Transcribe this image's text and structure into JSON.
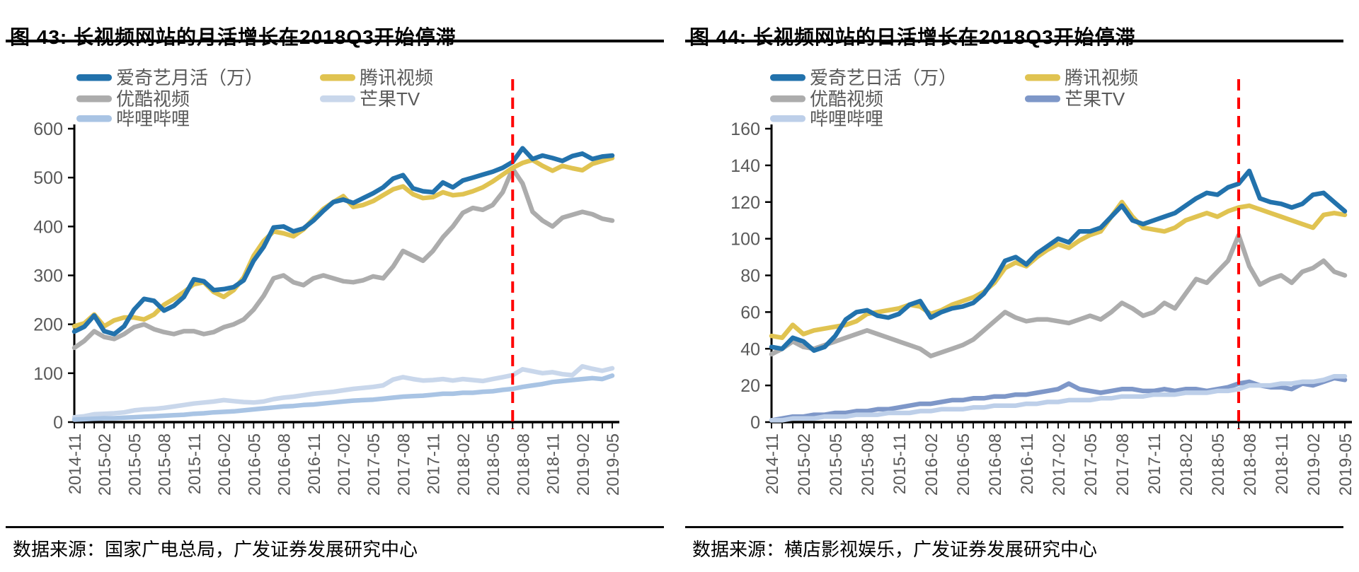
{
  "chart_data": [
    {
      "type": "line",
      "title": "图 43: 长视频网站的月活增长在2018Q3开始停滞",
      "source": "数据来源：国家广电总局，广发证券发展研究中心",
      "ylim": [
        0,
        600
      ],
      "ytick_step": 100,
      "x_label_every": 3,
      "grid": false,
      "legend_position": "top-left",
      "legend_columns": [
        [
          0,
          2,
          4
        ],
        [
          1,
          3
        ]
      ],
      "annotation_line": {
        "x": "2018-07",
        "color": "#FF0000",
        "style": "dashed"
      },
      "x": [
        "2014-11",
        "2014-12",
        "2015-01",
        "2015-02",
        "2015-03",
        "2015-04",
        "2015-05",
        "2015-06",
        "2015-07",
        "2015-08",
        "2015-09",
        "2015-10",
        "2015-11",
        "2015-12",
        "2016-01",
        "2016-02",
        "2016-03",
        "2016-04",
        "2016-05",
        "2016-06",
        "2016-07",
        "2016-08",
        "2016-09",
        "2016-10",
        "2016-11",
        "2016-12",
        "2017-01",
        "2017-02",
        "2017-03",
        "2017-04",
        "2017-05",
        "2017-06",
        "2017-07",
        "2017-08",
        "2017-09",
        "2017-10",
        "2017-11",
        "2017-12",
        "2018-01",
        "2018-02",
        "2018-03",
        "2018-04",
        "2018-05",
        "2018-06",
        "2018-07",
        "2018-08",
        "2018-09",
        "2018-10",
        "2018-11",
        "2018-12",
        "2019-01",
        "2019-02",
        "2019-03",
        "2019-04",
        "2019-05"
      ],
      "series": [
        {
          "name": "爱奇艺月活（万）",
          "color": "#2272AC",
          "values": [
            185,
            195,
            218,
            186,
            180,
            196,
            230,
            252,
            248,
            228,
            238,
            256,
            292,
            288,
            270,
            272,
            276,
            290,
            330,
            358,
            398,
            400,
            390,
            396,
            412,
            432,
            450,
            455,
            448,
            458,
            468,
            480,
            498,
            505,
            478,
            472,
            470,
            490,
            480,
            494,
            500,
            506,
            512,
            520,
            532,
            560,
            538,
            545,
            540,
            534,
            544,
            549,
            538,
            543,
            545
          ]
        },
        {
          "name": "腾讯视频",
          "color": "#E0C351",
          "values": [
            196,
            202,
            220,
            196,
            208,
            214,
            214,
            210,
            220,
            240,
            252,
            266,
            282,
            286,
            266,
            256,
            270,
            296,
            340,
            370,
            390,
            386,
            380,
            394,
            416,
            436,
            450,
            462,
            440,
            444,
            452,
            464,
            476,
            482,
            466,
            458,
            460,
            470,
            464,
            466,
            472,
            480,
            492,
            506,
            520,
            530,
            536,
            524,
            514,
            524,
            519,
            515,
            528,
            534,
            540
          ]
        },
        {
          "name": "优酷视频",
          "color": "#ACACAC",
          "values": [
            152,
            166,
            186,
            174,
            170,
            180,
            194,
            200,
            190,
            184,
            180,
            186,
            186,
            180,
            184,
            194,
            200,
            210,
            230,
            258,
            294,
            300,
            286,
            280,
            294,
            300,
            294,
            288,
            286,
            290,
            298,
            294,
            318,
            350,
            340,
            330,
            350,
            378,
            400,
            428,
            438,
            434,
            444,
            470,
            518,
            488,
            430,
            412,
            400,
            418,
            424,
            430,
            425,
            416,
            412
          ]
        },
        {
          "name": "芒果TV",
          "color": "#C9D7EB",
          "values": [
            10,
            12,
            16,
            17,
            18,
            20,
            24,
            26,
            27,
            29,
            32,
            35,
            38,
            40,
            42,
            45,
            43,
            41,
            40,
            42,
            47,
            50,
            52,
            55,
            58,
            60,
            62,
            65,
            68,
            70,
            72,
            75,
            87,
            92,
            88,
            85,
            86,
            88,
            85,
            88,
            86,
            84,
            88,
            92,
            96,
            108,
            104,
            100,
            102,
            98,
            96,
            114,
            109,
            105,
            110
          ]
        },
        {
          "name": "哔哩哔哩",
          "color": "#A9C4E4",
          "values": [
            5,
            6,
            7,
            8,
            8,
            9,
            10,
            11,
            12,
            13,
            14,
            15,
            17,
            18,
            20,
            21,
            22,
            24,
            26,
            28,
            30,
            32,
            33,
            35,
            36,
            38,
            40,
            42,
            44,
            45,
            46,
            48,
            50,
            52,
            53,
            54,
            56,
            58,
            58,
            60,
            60,
            62,
            63,
            66,
            68,
            72,
            75,
            78,
            82,
            84,
            86,
            88,
            90,
            88,
            95
          ]
        }
      ]
    },
    {
      "type": "line",
      "title": "图 44: 长视频网站的日活增长在2018Q3开始停滞",
      "source": "数据来源：横店影视娱乐，广发证券发展研究中心",
      "ylim": [
        0,
        160
      ],
      "ytick_step": 20,
      "x_label_every": 3,
      "grid": false,
      "legend_position": "top-left",
      "legend_columns": [
        [
          0,
          2,
          4
        ],
        [
          1,
          3
        ]
      ],
      "annotation_line": {
        "x": "2018-07",
        "color": "#FF0000",
        "style": "dashed"
      },
      "x": [
        "2014-11",
        "2014-12",
        "2015-01",
        "2015-02",
        "2015-03",
        "2015-04",
        "2015-05",
        "2015-06",
        "2015-07",
        "2015-08",
        "2015-09",
        "2015-10",
        "2015-11",
        "2015-12",
        "2016-01",
        "2016-02",
        "2016-03",
        "2016-04",
        "2016-05",
        "2016-06",
        "2016-07",
        "2016-08",
        "2016-09",
        "2016-10",
        "2016-11",
        "2016-12",
        "2017-01",
        "2017-02",
        "2017-03",
        "2017-04",
        "2017-05",
        "2017-06",
        "2017-07",
        "2017-08",
        "2017-09",
        "2017-10",
        "2017-11",
        "2017-12",
        "2018-01",
        "2018-02",
        "2018-03",
        "2018-04",
        "2018-05",
        "2018-06",
        "2018-07",
        "2018-08",
        "2018-09",
        "2018-10",
        "2018-11",
        "2018-12",
        "2019-01",
        "2019-02",
        "2019-03",
        "2019-04",
        "2019-05"
      ],
      "series": [
        {
          "name": "爱奇艺日活（万）",
          "color": "#2272AC",
          "values": [
            41,
            40,
            46,
            44,
            39,
            41,
            47,
            56,
            60,
            61,
            58,
            57,
            59,
            64,
            66,
            57,
            60,
            62,
            63,
            65,
            70,
            78,
            88,
            90,
            86,
            92,
            96,
            100,
            98,
            104,
            104,
            106,
            112,
            118,
            110,
            108,
            110,
            112,
            114,
            118,
            122,
            125,
            124,
            128,
            130,
            137,
            122,
            120,
            119,
            117,
            119,
            124,
            125,
            120,
            115
          ]
        },
        {
          "name": "腾讯视频",
          "color": "#E0C351",
          "values": [
            47,
            46,
            53,
            48,
            50,
            51,
            52,
            53,
            55,
            59,
            60,
            61,
            62,
            64,
            63,
            59,
            61,
            64,
            66,
            68,
            71,
            76,
            84,
            87,
            85,
            90,
            94,
            97,
            95,
            99,
            102,
            104,
            112,
            120,
            112,
            106,
            105,
            104,
            106,
            110,
            112,
            114,
            112,
            115,
            117,
            118,
            116,
            114,
            112,
            110,
            108,
            106,
            113,
            114,
            113
          ]
        },
        {
          "name": "优酷视频",
          "color": "#ACACAC",
          "values": [
            37,
            40,
            44,
            41,
            40,
            42,
            44,
            46,
            48,
            50,
            48,
            46,
            44,
            42,
            40,
            36,
            38,
            40,
            42,
            45,
            50,
            55,
            60,
            57,
            55,
            56,
            56,
            55,
            54,
            56,
            58,
            56,
            60,
            65,
            62,
            58,
            60,
            65,
            62,
            70,
            78,
            76,
            82,
            88,
            102,
            85,
            75,
            78,
            80,
            76,
            82,
            84,
            88,
            82,
            80
          ]
        },
        {
          "name": "芒果TV",
          "color": "#7E97C8",
          "values": [
            1,
            2,
            3,
            3,
            4,
            4,
            5,
            5,
            6,
            6,
            7,
            7,
            8,
            9,
            10,
            10,
            11,
            12,
            12,
            13,
            13,
            14,
            14,
            15,
            15,
            16,
            17,
            18,
            21,
            18,
            17,
            16,
            17,
            18,
            18,
            17,
            17,
            18,
            17,
            18,
            18,
            17,
            18,
            19,
            21,
            22,
            20,
            19,
            19,
            18,
            21,
            20,
            22,
            24,
            23
          ]
        },
        {
          "name": "哔哩哔哩",
          "color": "#BDCFE9",
          "values": [
            1,
            1,
            2,
            2,
            2,
            3,
            3,
            3,
            4,
            4,
            4,
            5,
            5,
            5,
            6,
            6,
            7,
            7,
            7,
            8,
            8,
            9,
            9,
            9,
            10,
            10,
            11,
            11,
            12,
            12,
            12,
            13,
            13,
            14,
            14,
            14,
            15,
            15,
            15,
            16,
            16,
            16,
            17,
            17,
            18,
            20,
            20,
            20,
            21,
            21,
            22,
            22,
            23,
            25,
            25
          ]
        }
      ]
    }
  ],
  "style": {
    "axis_text_color": "#595959",
    "axis_line_color": "#000000",
    "red_line_color": "#FF0000"
  }
}
